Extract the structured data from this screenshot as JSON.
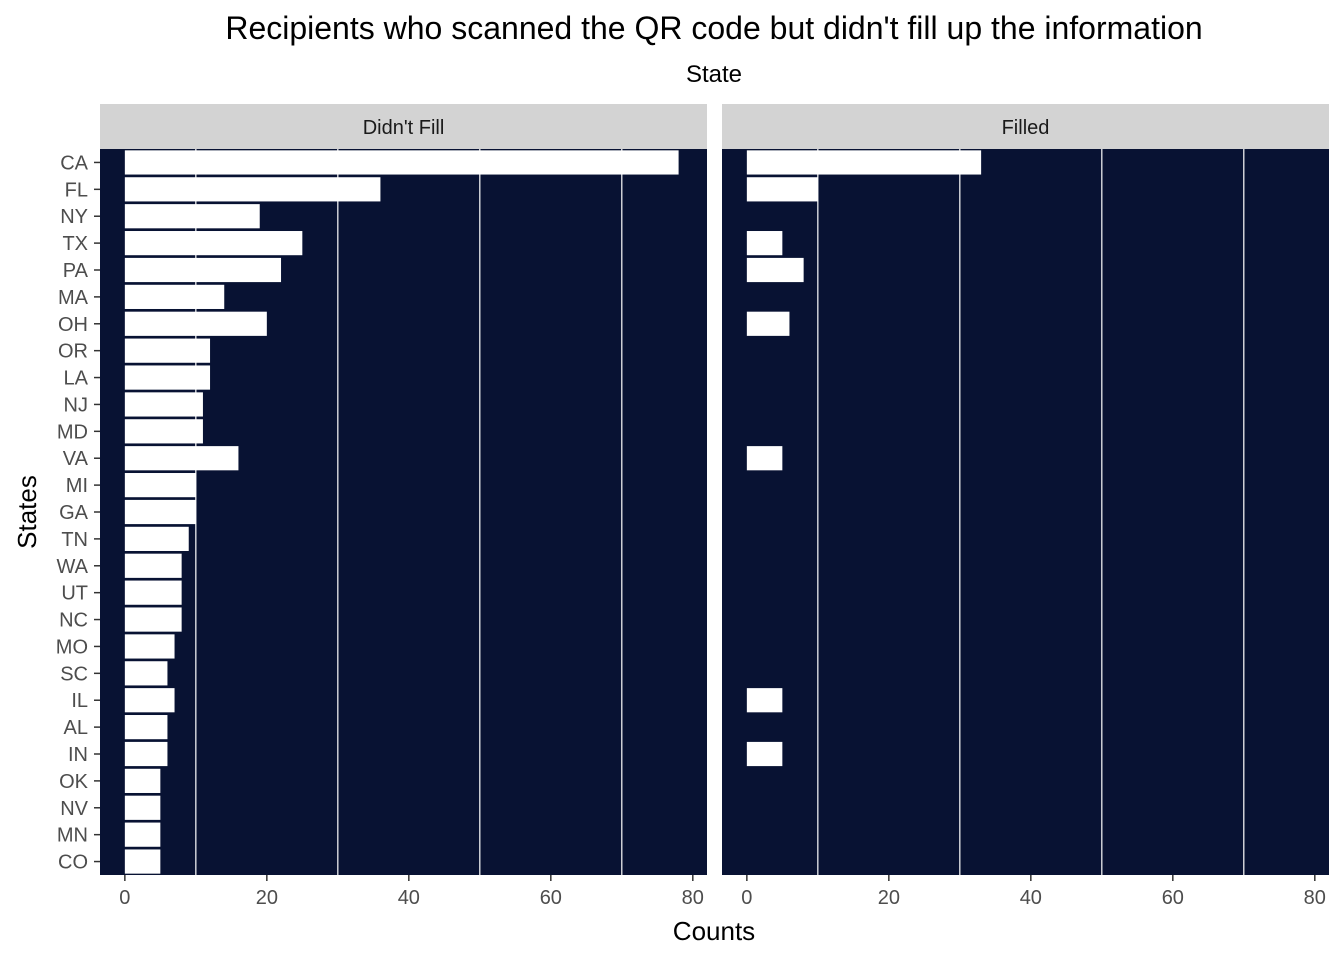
{
  "chart_data": {
    "type": "bar",
    "orientation": "horizontal",
    "title": "Recipients who scanned the QR code but didn't fill up the information",
    "subtitle": "State",
    "xlabel": "Counts",
    "ylabel": "States",
    "xlim": [
      -3.5,
      82
    ],
    "x_ticks": [
      0,
      20,
      40,
      60,
      80
    ],
    "x_minor_gridlines": [
      10,
      30,
      50,
      70
    ],
    "grid": "minor-only",
    "panel_background": "#081233",
    "bar_color": "#ffffff",
    "strip_background": "#d3d3d3",
    "categories": [
      "CA",
      "FL",
      "NY",
      "TX",
      "PA",
      "MA",
      "OH",
      "OR",
      "LA",
      "NJ",
      "MD",
      "VA",
      "MI",
      "GA",
      "TN",
      "WA",
      "UT",
      "NC",
      "MO",
      "SC",
      "IL",
      "AL",
      "IN",
      "OK",
      "NV",
      "MN",
      "CO"
    ],
    "panels": [
      {
        "name": "Didn't Fill",
        "values": [
          78,
          36,
          19,
          25,
          22,
          14,
          20,
          12,
          12,
          11,
          11,
          16,
          10,
          10,
          9,
          8,
          8,
          8,
          7,
          6,
          7,
          6,
          6,
          5,
          5,
          5,
          5
        ]
      },
      {
        "name": "Filled",
        "values": [
          33,
          10,
          null,
          5,
          8,
          null,
          6,
          null,
          null,
          null,
          null,
          5,
          null,
          null,
          null,
          null,
          null,
          null,
          null,
          null,
          5,
          null,
          5,
          null,
          null,
          null,
          null
        ]
      }
    ]
  }
}
